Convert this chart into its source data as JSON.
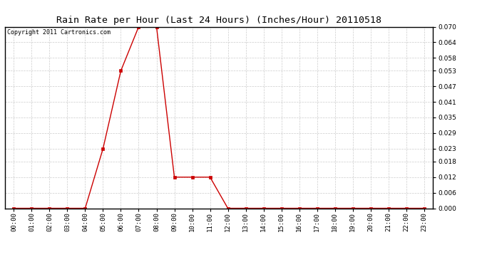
{
  "title": "Rain Rate per Hour (Last 24 Hours) (Inches/Hour) 20110518",
  "copyright": "Copyright 2011 Cartronics.com",
  "x_labels": [
    "00:00",
    "01:00",
    "02:00",
    "03:00",
    "04:00",
    "05:00",
    "06:00",
    "07:00",
    "08:00",
    "09:00",
    "10:00",
    "11:00",
    "12:00",
    "13:00",
    "14:00",
    "15:00",
    "16:00",
    "17:00",
    "18:00",
    "19:00",
    "20:00",
    "21:00",
    "22:00",
    "23:00"
  ],
  "y_values": [
    0.0,
    0.0,
    0.0,
    0.0,
    0.0,
    0.023,
    0.053,
    0.07,
    0.07,
    0.012,
    0.012,
    0.012,
    0.0,
    0.0,
    0.0,
    0.0,
    0.0,
    0.0,
    0.0,
    0.0,
    0.0,
    0.0,
    0.0,
    0.0
  ],
  "ylim": [
    0.0,
    0.07
  ],
  "yticks": [
    0.0,
    0.006,
    0.012,
    0.018,
    0.023,
    0.029,
    0.035,
    0.041,
    0.047,
    0.053,
    0.058,
    0.064,
    0.07
  ],
  "line_color": "#cc0000",
  "marker": "s",
  "marker_size": 2.5,
  "background_color": "#ffffff",
  "plot_bg_color": "#ffffff",
  "grid_color": "#cccccc",
  "title_fontsize": 9.5,
  "tick_fontsize": 6.5,
  "copyright_fontsize": 6.0
}
